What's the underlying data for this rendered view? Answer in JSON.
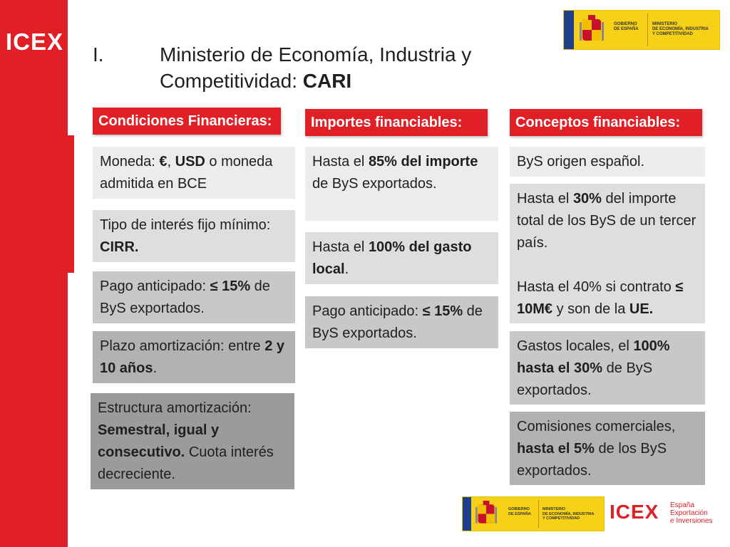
{
  "sidebar": {
    "logo_text": "ICEX"
  },
  "title": {
    "number": "I.",
    "line1": "Ministerio de Economía, Industria y",
    "line2_prefix": "Competitividad: ",
    "line2_bold": "CARI"
  },
  "gov_banner": {
    "govt_line1": "GOBIERNO",
    "govt_line2": "DE ESPAÑA",
    "min_line1": "MINISTERIO",
    "min_line2": "DE ECONOMÍA, INDUSTRIA",
    "min_line3": "Y COMPETITIVIDAD"
  },
  "columns": {
    "col1": {
      "header": "Condiciones Financieras:",
      "box1": {
        "t1": "Moneda: ",
        "b1": "€",
        "t2": ", ",
        "b2": "USD",
        "t3": " o moneda admitida en BCE"
      },
      "box2": {
        "t1": "Tipo de interés fijo mínimo: ",
        "b1": "CIRR."
      },
      "box3": {
        "t1": "Pago anticipado: ",
        "b1": "≤ 15%",
        "t2": " de ByS exportados."
      },
      "box4": {
        "t1": "Plazo amortización: entre ",
        "b1": "2 y 10 años",
        "t2": "."
      },
      "box5": {
        "t1": "Estructura amortización: ",
        "b1": "Semestral, igual y consecutivo.",
        "t2": " Cuota interés decreciente."
      }
    },
    "col2": {
      "header": "Importes financiables:",
      "box1": {
        "t1": "Hasta el ",
        "b1": "85% del importe",
        "t2": " de ByS exportados."
      },
      "box2": {
        "t1": "Hasta el ",
        "b1": "100% del gasto local",
        "t2": "."
      },
      "box3": {
        "t1": "Pago anticipado: ",
        "b1": "≤ 15%",
        "t2": " de ByS exportados."
      }
    },
    "col3": {
      "header": "Conceptos financiables:",
      "box1": {
        "t1": "ByS origen español."
      },
      "box2": {
        "t1": "Hasta el ",
        "b1": "30%",
        "t2": " del importe total de los ByS de un tercer país.",
        "t3": "Hasta el 40% si contrato ",
        "b2": "≤ 10M€",
        "t4": " y son de la ",
        "b3": "UE."
      },
      "box3": {
        "t1": "Gastos locales, el ",
        "b1": "100% hasta el 30%",
        "t2": " de ByS exportados."
      },
      "box4": {
        "t1": "Comisiones comerciales, ",
        "b1": "hasta el 5%",
        "t2": " de los ByS exportados."
      }
    }
  },
  "footer": {
    "govt_line1": "GOBIERNO",
    "govt_line2": "DE ESPAÑA",
    "min_line1": "MINISTERIO",
    "min_line2": "DE ECONOMÍA, INDUSTRIA",
    "min_line3": "Y COMPETITIVIDAD",
    "icex_text": "ICEX",
    "tag_line1": "España",
    "tag_line2": "Exportación",
    "tag_line3": "e Inversiones"
  },
  "colors": {
    "brand_red": "#e01f26",
    "gov_yellow": "#f7d117",
    "gov_blue": "#1e3f8f"
  }
}
